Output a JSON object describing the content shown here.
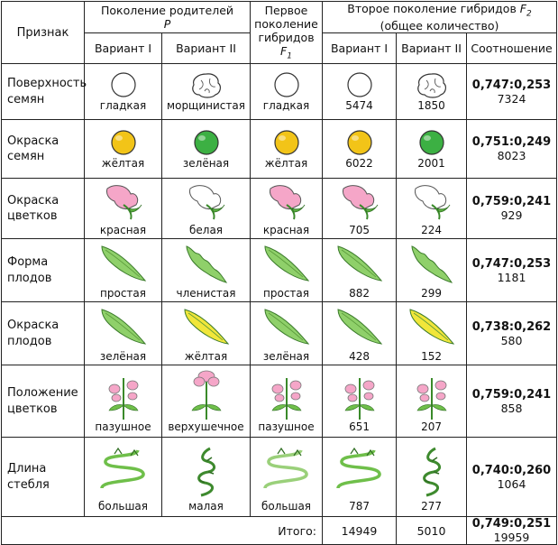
{
  "header": {
    "feature": "Признак",
    "parents": "Поколение родителей",
    "parents_sym": "P",
    "f1_line1": "Первое",
    "f1_line2": "поколение",
    "f1_line3": "гибридов",
    "f1_sym": "F",
    "f1_sub": "1",
    "f2_line1": "Второе поколение гибридов",
    "f2_sym": "F",
    "f2_sub": "2",
    "f2_line2": "(общее количество)",
    "variant1": "Вариант I",
    "variant2": "Вариант II",
    "ratio": "Соотношение"
  },
  "rows": [
    {
      "feature": "Поверхность семян",
      "p1": "гладкая",
      "p2": "морщинистая",
      "f1": "гладкая",
      "f2a": "5474",
      "f2b": "1850",
      "ratio": "0,747:0,253",
      "total": "7324",
      "kind": "seed",
      "c1": "#ffffff",
      "c2": "#ffffff",
      "c3": "#ffffff",
      "c4": "#ffffff",
      "c5": "#ffffff"
    },
    {
      "feature": "Окраска семян",
      "p1": "жёлтая",
      "p2": "зелёная",
      "f1": "жёлтая",
      "f2a": "6022",
      "f2b": "2001",
      "ratio": "0,751:0,249",
      "total": "8023",
      "kind": "seed",
      "c1": "#f2c418",
      "c2": "#3cb043",
      "c3": "#f2c418",
      "c4": "#f2c418",
      "c5": "#3cb043"
    },
    {
      "feature": "Окраска цветков",
      "p1": "красная",
      "p2": "белая",
      "f1": "красная",
      "f2a": "705",
      "f2b": "224",
      "ratio": "0,759:0,241",
      "total": "929",
      "kind": "flower",
      "c1": "#f5a6c8",
      "c2": "#ffffff",
      "c3": "#f5a6c8",
      "c4": "#f5a6c8",
      "c5": "#ffffff"
    },
    {
      "feature": "Форма плодов",
      "p1": "простая",
      "p2": "членистая",
      "f1": "простая",
      "f2a": "882",
      "f2b": "299",
      "ratio": "0,747:0,253",
      "total": "1181",
      "kind": "pod",
      "c1": "#8fd06a",
      "c2": "#8fd06a",
      "c3": "#8fd06a",
      "c4": "#8fd06a",
      "c5": "#8fd06a"
    },
    {
      "feature": "Окраска плодов",
      "p1": "зелёная",
      "p2": "жёлтая",
      "f1": "зелёная",
      "f2a": "428",
      "f2b": "152",
      "ratio": "0,738:0,262",
      "total": "580",
      "kind": "pod",
      "c1": "#8fd06a",
      "c2": "#f1e63a",
      "c3": "#8fd06a",
      "c4": "#8fd06a",
      "c5": "#f1e63a"
    },
    {
      "feature": "Положение цветков",
      "p1": "пазушное",
      "p2": "верхушечное",
      "f1": "пазушное",
      "f2a": "651",
      "f2b": "207",
      "ratio": "0,759:0,241",
      "total": "858",
      "kind": "plant",
      "c1": "#f5a6c8",
      "c2": "#f5a6c8",
      "c3": "#f5a6c8",
      "c4": "#f5a6c8",
      "c5": "#f5a6c8"
    },
    {
      "feature": "Длина стебля",
      "p1": "большая",
      "p2": "малая",
      "f1": "большая",
      "f2a": "787",
      "f2b": "277",
      "ratio": "0,740:0,260",
      "total": "1064",
      "kind": "stem",
      "c1": "#6fbf4a",
      "c2": "#3e8a2e",
      "c3": "#9ad07a",
      "c4": "#6fbf4a",
      "c5": "#3e8a2e"
    }
  ],
  "footer": {
    "label": "Итого:",
    "f2a": "14949",
    "f2b": "5010",
    "ratio": "0,749:0,251",
    "total": "19959"
  }
}
